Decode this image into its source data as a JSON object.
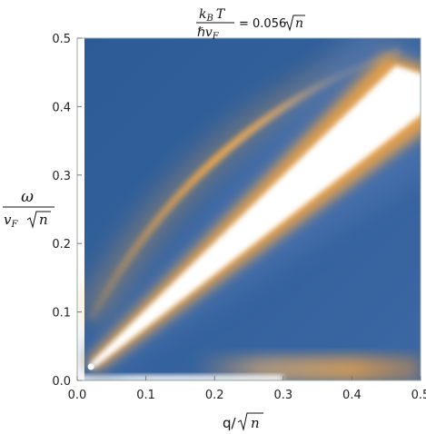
{
  "chart_data": {
    "type": "heatmap",
    "title": {
      "numerator_k": "k",
      "numerator_B": "B",
      "numerator_T": "T",
      "denominator_hbar": "ℏ",
      "denominator_v": "v",
      "denominator_F": "F",
      "equals": "= 0.056",
      "sqrt_n": "n"
    },
    "ylabel": {
      "numerator": "ω",
      "denominator_v": "v",
      "denominator_F": "F",
      "sqrt_n": "n"
    },
    "xlabel": {
      "q": "q/",
      "sqrt_n": "n"
    },
    "xlim": [
      0.0,
      0.5
    ],
    "ylim": [
      0.0,
      0.5
    ],
    "x_ticks": [
      "0.0",
      "0.1",
      "0.2",
      "0.3",
      "0.4",
      "0.5"
    ],
    "y_ticks": [
      "0.0",
      "0.1",
      "0.2",
      "0.3",
      "0.4",
      "0.5"
    ],
    "x_tick_values": [
      0.0,
      0.1,
      0.2,
      0.3,
      0.4,
      0.5
    ],
    "y_tick_values": [
      0.0,
      0.1,
      0.2,
      0.3,
      0.4,
      0.5
    ],
    "colormap": [
      "#2b5a95",
      "#4a72ad",
      "#e9a24a",
      "#ffffff"
    ],
    "features": [
      {
        "name": "main-band",
        "q_start": 0.02,
        "omega_start": 0.02,
        "q_end": 0.49,
        "omega_end": 0.43,
        "intensity": "saturated"
      },
      {
        "name": "upper-branch",
        "q_start": 0.02,
        "omega_start": 0.09,
        "q_end": 0.47,
        "omega_end": 0.48,
        "intensity": "medium"
      },
      {
        "name": "low-energy-continuum",
        "q_start": 0.0,
        "q_end": 0.5,
        "omega_max": 0.03,
        "intensity": "weak"
      }
    ]
  }
}
